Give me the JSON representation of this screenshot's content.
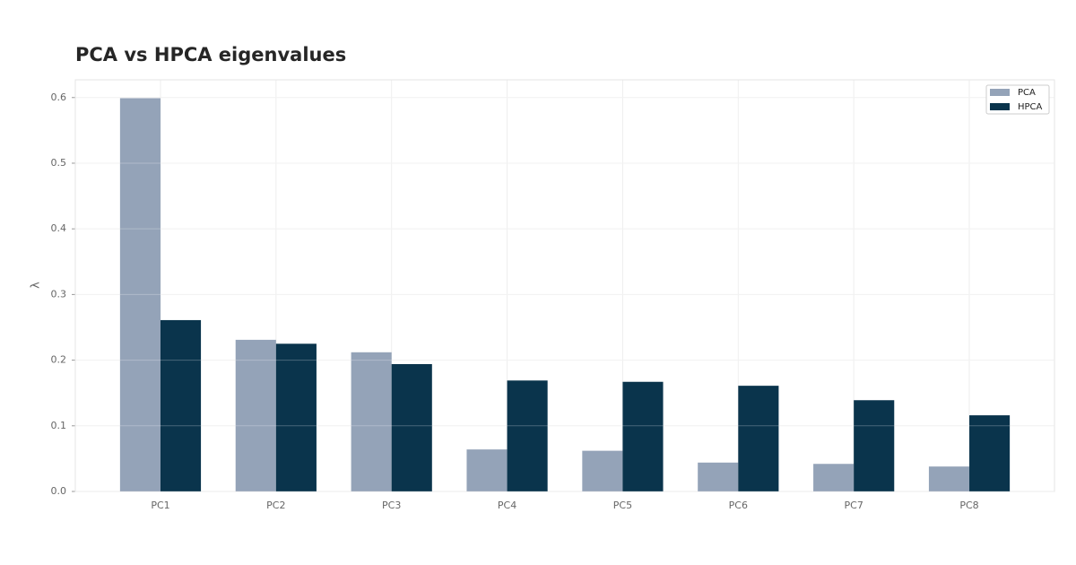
{
  "chart_data": {
    "type": "bar",
    "title": "PCA vs HPCA eigenvalues",
    "y_label": "λ",
    "categories": [
      "PC1",
      "PC2",
      "PC3",
      "PC4",
      "PC5",
      "PC6",
      "PC7",
      "PC8"
    ],
    "series": [
      {
        "name": "PCA",
        "color": "#94a3b8",
        "values": [
          0.599,
          0.231,
          0.212,
          0.064,
          0.062,
          0.044,
          0.042,
          0.038
        ]
      },
      {
        "name": "HPCA",
        "color": "#0a344c",
        "values": [
          0.261,
          0.225,
          0.194,
          0.169,
          0.167,
          0.161,
          0.139,
          0.116
        ]
      }
    ],
    "ylim": [
      0,
      0.627
    ],
    "yticks": [
      0.0,
      0.1,
      0.2,
      0.3,
      0.4,
      0.5,
      0.6
    ],
    "grid": true,
    "legend": "upper right"
  }
}
